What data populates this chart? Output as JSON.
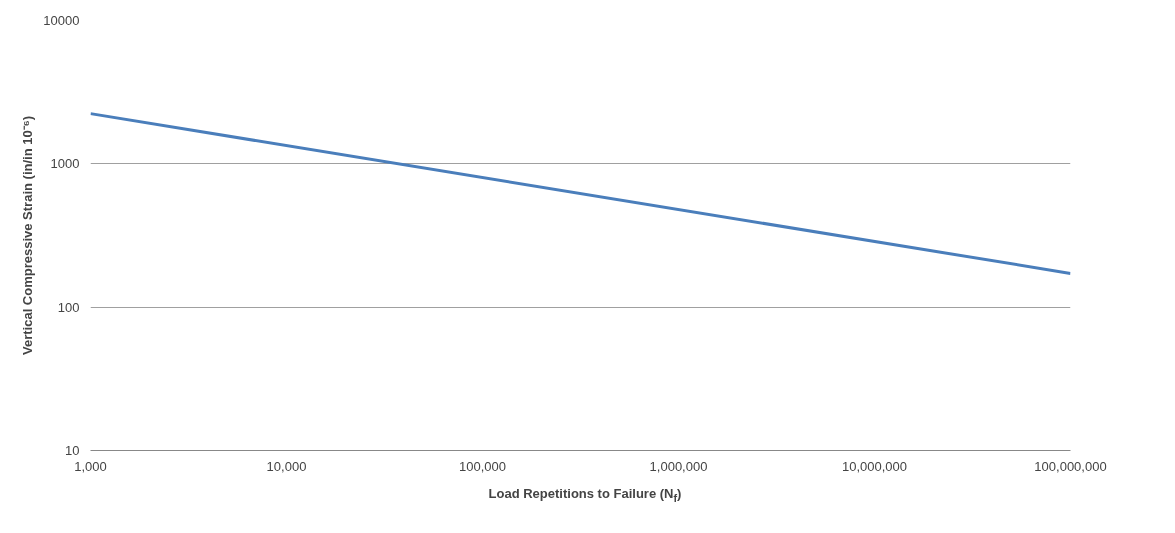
{
  "chart_data": {
    "type": "line",
    "xlabel": "Load Repetitions to Failure (N$_{f}$)",
    "ylabel": "Vertical Compressive Strain (in/in 10⁻⁶)",
    "log": "xy",
    "grid": "y",
    "line_style": "solid",
    "marker": "none",
    "series": [
      {
        "color": "#4a7ebb",
        "x": [
          1000,
          100000000
        ],
        "values": [
          2240,
          172
        ]
      }
    ],
    "xlim": [
      1000,
      100000000
    ],
    "ylim": [
      10,
      10000
    ],
    "xticks": [
      {
        "value": 1000,
        "label": "1,000"
      },
      {
        "value": 10000,
        "label": "10,000"
      },
      {
        "value": 100000,
        "label": "100,000"
      },
      {
        "value": 1000000,
        "label": "1,000,000"
      },
      {
        "value": 10000000,
        "label": "10,000,000"
      },
      {
        "value": 100000000,
        "label": "100,000,000"
      }
    ],
    "yticks": [
      10,
      100,
      1000,
      10000
    ]
  }
}
